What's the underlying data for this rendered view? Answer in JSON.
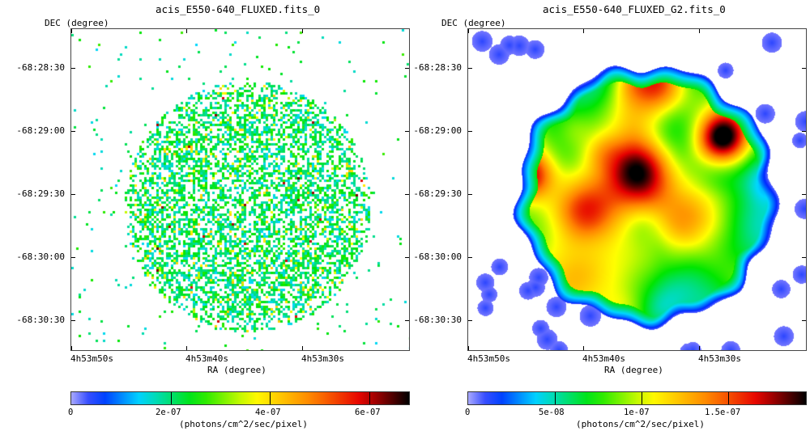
{
  "chart_data": [
    {
      "type": "heatmap",
      "title": "acis_E550-640_FLUXED.fits_0",
      "xlabel": "RA (degree)",
      "ylabel": "DEC (degree)",
      "x_ticks": [
        "4h53m50s",
        "4h53m40s",
        "4h53m30s"
      ],
      "y_ticks": [
        "-68:28:30",
        "-68:29:00",
        "-68:29:30",
        "-68:30:00",
        "-68:30:30"
      ],
      "colorbar": {
        "ticks": [
          "0",
          "2e-07",
          "4e-07",
          "6e-07"
        ],
        "tick_values": [
          0,
          2e-07,
          4e-07,
          6e-07
        ],
        "range": [
          0,
          6.8e-07
        ],
        "label": "(photons/cm^2/sec/pixel)",
        "colormap": "rainbow"
      },
      "style": "sparse-pixels"
    },
    {
      "type": "heatmap",
      "title": "acis_E550-640_FLUXED_G2.fits_0",
      "xlabel": "RA (degree)",
      "ylabel": "DEC (degree)",
      "x_ticks": [
        "4h53m50s",
        "4h53m40s",
        "4h53m30s"
      ],
      "y_ticks": [
        "-68:28:30",
        "-68:29:00",
        "-68:29:30",
        "-68:30:00",
        "-68:30:30"
      ],
      "colorbar": {
        "ticks": [
          "0",
          "5e-08",
          "1e-07",
          "1.5e-07"
        ],
        "tick_values": [
          0,
          5e-08,
          1e-07,
          1.5e-07
        ],
        "range": [
          0,
          1.95e-07
        ],
        "label": "(photons/cm^2/sec/pixel)",
        "colormap": "rainbow"
      },
      "style": "smoothed"
    }
  ]
}
